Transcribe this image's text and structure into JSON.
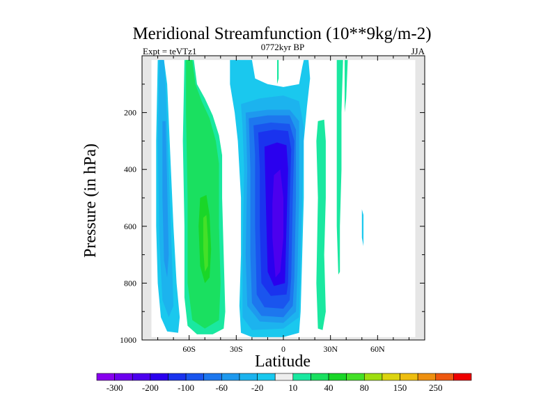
{
  "chart_data": {
    "type": "contour",
    "title": "Meridional Streamfunction (10**9kg/m-2)",
    "subtitle_center": "0772kyr BP",
    "subtitle_left": "Expt = teVTz1",
    "subtitle_right": "JJA",
    "xlabel": "Latitude",
    "ylabel": "Pressure (in hPa)",
    "xlim": [
      -90,
      90
    ],
    "ylim": [
      1000,
      0
    ],
    "x_ticks": [
      {
        "value": -60,
        "label": "60S"
      },
      {
        "value": -30,
        "label": "30S"
      },
      {
        "value": 0,
        "label": "0"
      },
      {
        "value": 30,
        "label": "30N"
      },
      {
        "value": 60,
        "label": "60N"
      }
    ],
    "y_ticks": [
      {
        "value": 200,
        "label": "200"
      },
      {
        "value": 400,
        "label": "400"
      },
      {
        "value": 600,
        "label": "600"
      },
      {
        "value": 800,
        "label": "800"
      },
      {
        "value": 1000,
        "label": "1000"
      }
    ],
    "missing_color": "#e6e6e6",
    "colorbar": {
      "levels": [
        -300,
        -250,
        -200,
        -150,
        -100,
        -80,
        -60,
        -40,
        -20,
        -10,
        10,
        20,
        40,
        60,
        80,
        100,
        150,
        200,
        250,
        300
      ],
      "tick_labels": [
        "-300",
        "-200",
        "-100",
        "-60",
        "-20",
        "10",
        "40",
        "80",
        "150",
        "250"
      ],
      "tick_level_indices": [
        0,
        2,
        4,
        6,
        8,
        10,
        12,
        14,
        16,
        18
      ],
      "colors": [
        "#8800ee",
        "#6c00ee",
        "#4c00ee",
        "#2a00ee",
        "#1a33ee",
        "#1a55ee",
        "#1d77ee",
        "#1e99ee",
        "#1cb3ee",
        "#1ac8ee",
        "#eeeeee",
        "#1ae8a0",
        "#1ae060",
        "#1ad628",
        "#44e028",
        "#9ede10",
        "#dcd410",
        "#eebe10",
        "#ee9010",
        "#ee5810",
        "#ee0000"
      ]
    },
    "regions": [
      {
        "name": "sh-polar-cell-outer",
        "color_index": 9,
        "points": [
          [
            -80,
            15
          ],
          [
            -76,
            15
          ],
          [
            -74,
            100
          ],
          [
            -72,
            350
          ],
          [
            -70,
            600
          ],
          [
            -68,
            800
          ],
          [
            -66,
            920
          ],
          [
            -67,
            975
          ],
          [
            -74,
            970
          ],
          [
            -78,
            920
          ],
          [
            -80,
            800
          ],
          [
            -81,
            600
          ],
          [
            -81,
            300
          ]
        ]
      },
      {
        "name": "sh-polar-cell-mid",
        "color_index": 8,
        "points": [
          [
            -79,
            15
          ],
          [
            -76,
            15
          ],
          [
            -75,
            100
          ],
          [
            -73,
            400
          ],
          [
            -71,
            700
          ],
          [
            -70,
            880
          ],
          [
            -73,
            920
          ],
          [
            -77,
            860
          ],
          [
            -79,
            650
          ],
          [
            -80,
            300
          ]
        ]
      },
      {
        "name": "sh-polar-cell-core",
        "color_index": 7,
        "points": [
          [
            -77,
            230
          ],
          [
            -75,
            230
          ],
          [
            -74,
            450
          ],
          [
            -73,
            700
          ],
          [
            -74,
            780
          ],
          [
            -76,
            720
          ],
          [
            -77,
            500
          ]
        ]
      },
      {
        "name": "sh-ferrel-outer",
        "color_index": 11,
        "points": [
          [
            -63,
            15
          ],
          [
            -57,
            15
          ],
          [
            -55,
            100
          ],
          [
            -50,
            150
          ],
          [
            -45,
            210
          ],
          [
            -41,
            280
          ],
          [
            -39,
            350
          ],
          [
            -39,
            500
          ],
          [
            -38,
            700
          ],
          [
            -37,
            900
          ],
          [
            -38,
            960
          ],
          [
            -45,
            980
          ],
          [
            -55,
            980
          ],
          [
            -61,
            950
          ],
          [
            -63,
            850
          ],
          [
            -63,
            600
          ],
          [
            -64,
            300
          ]
        ]
      },
      {
        "name": "sh-ferrel-green",
        "color_index": 12,
        "points": [
          [
            -62,
            15
          ],
          [
            -58,
            15
          ],
          [
            -56,
            100
          ],
          [
            -52,
            160
          ],
          [
            -47,
            220
          ],
          [
            -43,
            300
          ],
          [
            -41,
            380
          ],
          [
            -41,
            600
          ],
          [
            -40,
            800
          ],
          [
            -41,
            930
          ],
          [
            -50,
            960
          ],
          [
            -58,
            930
          ],
          [
            -61,
            800
          ],
          [
            -61,
            500
          ],
          [
            -62,
            200
          ]
        ]
      },
      {
        "name": "sh-ferrel-core-1",
        "color_index": 13,
        "points": [
          [
            -53,
            500
          ],
          [
            -49,
            490
          ],
          [
            -47,
            560
          ],
          [
            -46,
            680
          ],
          [
            -47,
            780
          ],
          [
            -50,
            800
          ],
          [
            -53,
            740
          ],
          [
            -54,
            600
          ]
        ]
      },
      {
        "name": "sh-ferrel-core-2",
        "color_index": 14,
        "points": [
          [
            -51,
            570
          ],
          [
            -49,
            560
          ],
          [
            -48,
            650
          ],
          [
            -48,
            740
          ],
          [
            -50,
            760
          ],
          [
            -51,
            680
          ]
        ]
      },
      {
        "name": "tropical-outer-1",
        "color_index": 9,
        "points": [
          [
            -34,
            15
          ],
          [
            -20,
            15
          ],
          [
            -18,
            80
          ],
          [
            -10,
            100
          ],
          [
            0,
            110
          ],
          [
            10,
            100
          ],
          [
            12,
            40
          ],
          [
            13,
            15
          ],
          [
            16,
            15
          ],
          [
            17,
            80
          ],
          [
            15,
            180
          ],
          [
            13,
            300
          ],
          [
            13,
            500
          ],
          [
            12,
            700
          ],
          [
            11,
            900
          ],
          [
            10,
            975
          ],
          [
            0,
            990
          ],
          [
            -20,
            990
          ],
          [
            -27,
            975
          ],
          [
            -28,
            880
          ],
          [
            -27,
            700
          ],
          [
            -27,
            500
          ],
          [
            -29,
            300
          ],
          [
            -31,
            200
          ],
          [
            -34,
            100
          ]
        ]
      },
      {
        "name": "tropical-outer-2",
        "color_index": 8,
        "points": [
          [
            -27,
            170
          ],
          [
            -15,
            150
          ],
          [
            0,
            140
          ],
          [
            10,
            160
          ],
          [
            13,
            250
          ],
          [
            12,
            500
          ],
          [
            11,
            700
          ],
          [
            10,
            920
          ],
          [
            0,
            960
          ],
          [
            -20,
            965
          ],
          [
            -26,
            920
          ],
          [
            -26,
            700
          ],
          [
            -25,
            400
          ],
          [
            -26,
            250
          ]
        ]
      },
      {
        "name": "tropical-cell-1",
        "color_index": 7,
        "points": [
          [
            -24,
            200
          ],
          [
            -10,
            190
          ],
          [
            4,
            190
          ],
          [
            10,
            230
          ],
          [
            10,
            500
          ],
          [
            9,
            760
          ],
          [
            8,
            900
          ],
          [
            0,
            940
          ],
          [
            -15,
            935
          ],
          [
            -23,
            880
          ],
          [
            -24,
            700
          ],
          [
            -23,
            400
          ]
        ]
      },
      {
        "name": "tropical-cell-2",
        "color_index": 6,
        "points": [
          [
            -22,
            220
          ],
          [
            -10,
            210
          ],
          [
            4,
            210
          ],
          [
            8,
            260
          ],
          [
            8,
            500
          ],
          [
            7,
            780
          ],
          [
            6,
            880
          ],
          [
            0,
            920
          ],
          [
            -14,
            915
          ],
          [
            -20,
            870
          ],
          [
            -21,
            700
          ],
          [
            -21,
            400
          ]
        ]
      },
      {
        "name": "tropical-cell-3",
        "color_index": 5,
        "points": [
          [
            -19,
            245
          ],
          [
            -8,
            235
          ],
          [
            4,
            240
          ],
          [
            7,
            300
          ],
          [
            6,
            500
          ],
          [
            5,
            780
          ],
          [
            4,
            860
          ],
          [
            0,
            890
          ],
          [
            -12,
            885
          ],
          [
            -17,
            840
          ],
          [
            -18,
            600
          ],
          [
            -18,
            350
          ]
        ]
      },
      {
        "name": "tropical-cell-4",
        "color_index": 4,
        "points": [
          [
            -16,
            270
          ],
          [
            -6,
            260
          ],
          [
            3,
            265
          ],
          [
            5,
            330
          ],
          [
            4,
            520
          ],
          [
            3,
            800
          ],
          [
            2,
            840
          ],
          [
            -8,
            845
          ],
          [
            -14,
            800
          ],
          [
            -15,
            600
          ],
          [
            -15,
            400
          ]
        ]
      },
      {
        "name": "tropical-cell-5",
        "color_index": 3,
        "points": [
          [
            -12,
            320
          ],
          [
            -4,
            305
          ],
          [
            2,
            315
          ],
          [
            3,
            400
          ],
          [
            2,
            600
          ],
          [
            1,
            800
          ],
          [
            -6,
            810
          ],
          [
            -10,
            760
          ],
          [
            -11,
            550
          ]
        ]
      },
      {
        "name": "tropical-cell-6",
        "color_index": 2,
        "points": [
          [
            -6,
            420
          ],
          [
            -2,
            400
          ],
          [
            0,
            500
          ],
          [
            0,
            640
          ],
          [
            -2,
            760
          ],
          [
            -5,
            780
          ],
          [
            -7,
            640
          ],
          [
            -7,
            520
          ]
        ]
      },
      {
        "name": "nh-hadley-strip",
        "color_index": 11,
        "points": [
          [
            22,
            230
          ],
          [
            26,
            225
          ],
          [
            27,
            300
          ],
          [
            27,
            500
          ],
          [
            26,
            700
          ],
          [
            27,
            900
          ],
          [
            25,
            965
          ],
          [
            22,
            960
          ],
          [
            21,
            800
          ],
          [
            22,
            500
          ],
          [
            21,
            300
          ]
        ]
      },
      {
        "name": "nh-band-1",
        "color_index": 11,
        "points": [
          [
            34,
            15
          ],
          [
            38,
            15
          ],
          [
            37,
            200
          ],
          [
            37,
            400
          ],
          [
            36,
            600
          ],
          [
            36,
            760
          ],
          [
            35,
            770
          ],
          [
            34,
            600
          ],
          [
            34,
            400
          ],
          [
            34,
            200
          ]
        ]
      },
      {
        "name": "nh-band-2",
        "color_index": 11,
        "points": [
          [
            39,
            15
          ],
          [
            41,
            15
          ],
          [
            40,
            150
          ],
          [
            39,
            200
          ]
        ]
      },
      {
        "name": "nh-band-3",
        "color_index": 11,
        "points": [
          [
            -4,
            15
          ],
          [
            -3,
            15
          ],
          [
            -3,
            80
          ],
          [
            -4,
            100
          ]
        ]
      },
      {
        "name": "nh-blip",
        "color_index": 9,
        "points": [
          [
            50,
            540
          ],
          [
            51,
            560
          ],
          [
            51,
            650
          ],
          [
            51,
            670
          ],
          [
            50,
            640
          ]
        ]
      }
    ]
  }
}
